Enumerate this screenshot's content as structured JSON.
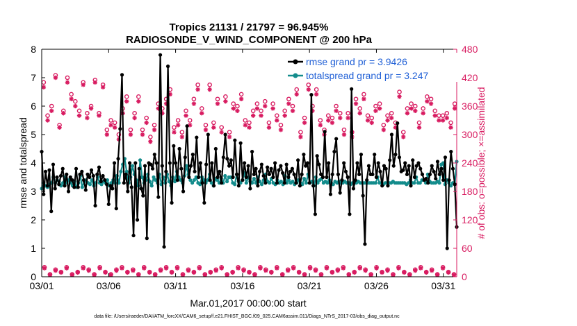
{
  "chart_data": {
    "type": "line",
    "title": "Tropics 21131 / 21797 = 96.945%",
    "subtitle": "RADIOSONDE_V_WIND_COMPONENT @ 200 hPa",
    "xlabel": "Mar.01,2017 00:00:00 start",
    "ylabel_left": "rmse and totalspread",
    "ylabel_right": "# of obs: o=possible; ×=assimilated",
    "footnote": "data file: /Users/raeder/DAI/ATM_forcXX/CAM6_setup/f.e21.FHIST_BGC.f09_025.CAM6assim.011/Diags_NTrS_2017-03/obs_diag_output.nc",
    "xlim": [
      0,
      31
    ],
    "ylim_left": [
      0,
      8
    ],
    "ylim_right": [
      0,
      480
    ],
    "x_ticks": [
      0,
      5,
      10,
      15,
      20,
      25,
      30
    ],
    "x_tick_labels": [
      "03/01",
      "03/06",
      "03/11",
      "03/16",
      "03/21",
      "03/26",
      "03/31"
    ],
    "y_left_ticks": [
      "0",
      "1",
      "2",
      "3",
      "4",
      "5",
      "6",
      "7",
      "8"
    ],
    "y_right_ticks": [
      "0",
      "60",
      "120",
      "180",
      "240",
      "300",
      "360",
      "420",
      "480"
    ],
    "colors": {
      "rmse": "#000000",
      "spread": "#138c8c",
      "obs": "#d81b60",
      "legend_text": "#1f5fd6"
    },
    "series": [
      {
        "name": "rmse grand pr = 3.9426",
        "axis": "left",
        "values": [
          4.4,
          2.9,
          3.7,
          3.2,
          3.75,
          2.3,
          3.95,
          3.1,
          3.5,
          3.25,
          3.55,
          3.8,
          3.2,
          3.6,
          3.0,
          3.5,
          3.4,
          3.15,
          3.8,
          3.15,
          3.6,
          3.7,
          3.4,
          3.05,
          3.6,
          3.5,
          3.75,
          3.55,
          2.5,
          3.6,
          3.85,
          3.35,
          3.55,
          3.4,
          3.25,
          2.55,
          3.2,
          3.1,
          4.0,
          2.4,
          4.15,
          5.2,
          7.1,
          3.3,
          3.6,
          3.0,
          4.0,
          3.15,
          1.45,
          4.0,
          2.0,
          3.8,
          3.1,
          2.85,
          3.9,
          1.35,
          4.0,
          3.95,
          3.8,
          4.3,
          4.0,
          2.8,
          7.8,
          3.9,
          1.05,
          3.7,
          7.4,
          4.0,
          2.6,
          4.6,
          4.0,
          3.4,
          4.5,
          3.8,
          3.0,
          4.2,
          5.3,
          3.5,
          3.9,
          4.3,
          3.7,
          4.9,
          3.5,
          4.0,
          3.3,
          2.6,
          3.95,
          5.0,
          3.4,
          4.0,
          3.2,
          4.5,
          3.5,
          3.7,
          3.3,
          4.2,
          5.0,
          4.15,
          3.9,
          4.1,
          3.5,
          4.8,
          3.6,
          3.2,
          4.7,
          3.4,
          4.0,
          3.5,
          3.9,
          3.1,
          4.4,
          3.6,
          3.8,
          3.2,
          3.7,
          3.95,
          3.55,
          3.3,
          3.85,
          3.6,
          3.8,
          3.5,
          4.0,
          3.3,
          3.75,
          3.9,
          3.65,
          3.3,
          3.95,
          3.5,
          3.7,
          3.8,
          3.6,
          3.3,
          4.1,
          3.2,
          3.6,
          4.3,
          3.9,
          4.0,
          3.3,
          6.4,
          3.2,
          2.2,
          4.25,
          3.95,
          3.6,
          3.5,
          5.1,
          3.5,
          4.0,
          2.9,
          3.6,
          4.4,
          4.85,
          3.6,
          2.95,
          3.4,
          4.0,
          3.7,
          3.5,
          2.2,
          6.6,
          3.1,
          3.4,
          4.0,
          3.6,
          4.3,
          2.85,
          1.15,
          3.4,
          3.9,
          3.6,
          3.6,
          4.3,
          3.5,
          4.0,
          3.7,
          3.2,
          3.9,
          3.8,
          3.2,
          4.1,
          5.0,
          3.9,
          4.3,
          5.4,
          4.2,
          3.7,
          3.75,
          4.0,
          3.6,
          3.9,
          3.2,
          4.1,
          3.5,
          3.9,
          4.0,
          3.8,
          3.6,
          3.4,
          3.45,
          3.3,
          3.6,
          3.9,
          3.7,
          3.45,
          4.05,
          3.6,
          3.8,
          3.4,
          4.2,
          1.0,
          3.4,
          4.4,
          3.8,
          3.25,
          1.75
        ]
      },
      {
        "name": "totalspread grand pr = 3.247",
        "axis": "left",
        "values": [
          3.1,
          3.3,
          3.2,
          3.15,
          3.25,
          3.3,
          3.5,
          3.3,
          3.4,
          3.35,
          3.2,
          3.3,
          3.5,
          3.3,
          3.4,
          3.3,
          3.2,
          3.35,
          3.15,
          3.3,
          3.55,
          3.15,
          3.35,
          3.4,
          3.3,
          3.25,
          3.4,
          3.2,
          3.3,
          3.5,
          3.3,
          3.25,
          3.35,
          3.3,
          3.4,
          3.2,
          3.3,
          3.4,
          3.3,
          3.55,
          3.3,
          3.7,
          3.95,
          4.15,
          3.7,
          3.3,
          3.5,
          3.9,
          3.6,
          3.4,
          3.2,
          4.1,
          3.5,
          3.3,
          3.4,
          3.6,
          3.35,
          3.2,
          3.5,
          3.4,
          3.3,
          3.6,
          3.25,
          3.5,
          3.3,
          3.6,
          3.35,
          3.2,
          3.5,
          3.35,
          3.7,
          3.5,
          3.4,
          3.3,
          3.55,
          3.9,
          3.6,
          3.4,
          3.3,
          3.4,
          3.5,
          3.3,
          3.25,
          3.5,
          3.4,
          3.3,
          3.4,
          3.6,
          3.3,
          3.2,
          3.45,
          3.4,
          3.3,
          3.45,
          3.3,
          3.55,
          3.35,
          3.5,
          3.5,
          3.3,
          3.25,
          3.6,
          3.35,
          3.3,
          3.4,
          3.65,
          3.3,
          3.5,
          3.35,
          3.3,
          3.45,
          3.3,
          3.5,
          3.35,
          3.25,
          3.4,
          3.6,
          3.35,
          3.3,
          3.45,
          3.3,
          3.25,
          3.4,
          3.3,
          3.35,
          3.25,
          3.55,
          3.3,
          3.4,
          3.3,
          3.35,
          3.25,
          3.3,
          3.4,
          3.3,
          3.25,
          3.45,
          3.3,
          3.6,
          3.3,
          3.35,
          3.2,
          3.5,
          3.3,
          3.4,
          3.45,
          3.3,
          3.35,
          3.3,
          3.4,
          3.3,
          3.25,
          3.35,
          3.3,
          3.35,
          3.3,
          3.3,
          3.35,
          3.3,
          3.3,
          3.25,
          3.3,
          3.3,
          3.3,
          3.35,
          3.3,
          3.3,
          3.3,
          3.3,
          3.3,
          3.3,
          3.3,
          3.3,
          3.3,
          3.5,
          3.3,
          3.3,
          3.25,
          3.3,
          3.3,
          3.3,
          3.3,
          3.35,
          3.3,
          3.3,
          3.3,
          3.3,
          3.3,
          3.3,
          3.25,
          3.3,
          3.4,
          3.3,
          3.3,
          3.5,
          3.3,
          3.3,
          3.4,
          3.4,
          3.3,
          3.6,
          3.35,
          3.3,
          3.3,
          3.3,
          3.35,
          3.3,
          3.95,
          4.0,
          3.25,
          3.4,
          3.3,
          3.2,
          3.3,
          3.25,
          4.05
        ]
      }
    ],
    "obs_possible_large": [
      410,
      340,
      360,
      425,
      320,
      350,
      420,
      385,
      370,
      350,
      410,
      345,
      360,
      415,
      345,
      405,
      310,
      330,
      325,
      300,
      355,
      380,
      310,
      345,
      380,
      310,
      335,
      295,
      320,
      365,
      355,
      375,
      395,
      315,
      330,
      305,
      350,
      330,
      375,
      405,
      355,
      320,
      405,
      325,
      375,
      315,
      380,
      305,
      365,
      360,
      385,
      330,
      325,
      350,
      365,
      350,
      370,
      325,
      365,
      340,
      320,
      350,
      375,
      360,
      395,
      305,
      335,
      405,
      360,
      395,
      330,
      310,
      340,
      335,
      360,
      345,
      310,
      345,
      305,
      375,
      355,
      385,
      340,
      335,
      360,
      365,
      320,
      340,
      345,
      325,
      390,
      305,
      355,
      365,
      360,
      325,
      355,
      380,
      375,
      350,
      340,
      340,
      345,
      325,
      365
    ],
    "obs_assimilated_large": [
      400,
      330,
      350,
      420,
      315,
      345,
      410,
      375,
      360,
      340,
      405,
      335,
      355,
      410,
      340,
      400,
      300,
      320,
      315,
      290,
      345,
      370,
      300,
      335,
      370,
      300,
      325,
      285,
      310,
      355,
      345,
      365,
      385,
      305,
      320,
      295,
      340,
      320,
      365,
      395,
      345,
      310,
      395,
      315,
      365,
      305,
      370,
      295,
      355,
      350,
      375,
      320,
      315,
      340,
      355,
      340,
      360,
      315,
      355,
      330,
      310,
      340,
      365,
      350,
      385,
      295,
      325,
      395,
      350,
      385,
      320,
      300,
      330,
      325,
      350,
      335,
      300,
      335,
      295,
      365,
      345,
      375,
      330,
      325,
      350,
      355,
      310,
      330,
      335,
      315,
      380,
      295,
      345,
      355,
      350,
      315,
      345,
      370,
      365,
      340,
      330,
      330,
      335,
      315,
      355
    ],
    "obs_possible_small": [
      20,
      5,
      15,
      10,
      20,
      5,
      10,
      20,
      15,
      5,
      20,
      10,
      5,
      15,
      20,
      10,
      15,
      5,
      20,
      10,
      5,
      15,
      20,
      10,
      20,
      5,
      15,
      10,
      20,
      5,
      10,
      15,
      20,
      5,
      10,
      20,
      15,
      10,
      5,
      20,
      15,
      10,
      20,
      5,
      15,
      20,
      10,
      5,
      20,
      15,
      5,
      20,
      10,
      15,
      20,
      5,
      10,
      20,
      15,
      5,
      20,
      10,
      15,
      5,
      20,
      10,
      5,
      15,
      20,
      10,
      15,
      5,
      20,
      10,
      5
    ],
    "obs_assimilated_small": [
      18,
      4,
      13,
      9,
      18,
      4,
      9,
      18,
      13,
      4,
      18,
      9,
      4,
      13,
      18,
      9,
      13,
      4,
      18,
      9,
      4,
      13,
      18,
      9,
      18,
      4,
      13,
      9,
      18,
      4,
      9,
      13,
      18,
      4,
      9,
      18,
      13,
      9,
      4,
      18,
      13,
      9,
      18,
      4,
      13,
      18,
      9,
      4,
      18,
      13,
      4,
      18,
      9,
      13,
      18,
      4,
      9,
      18,
      13,
      4,
      18,
      9,
      13,
      4,
      18,
      9,
      4,
      13,
      18,
      9,
      13,
      4,
      18,
      9,
      4
    ]
  }
}
